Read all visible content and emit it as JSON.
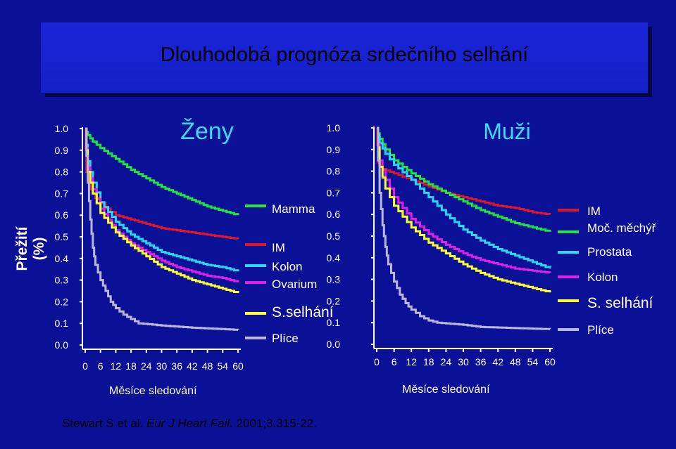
{
  "title": "Dlouhodobá prognóza srdečního selhání",
  "ylabel": "Přežití (%)",
  "citation": {
    "authors": "Stewart S et al.",
    "journal": "Eur J Heart Fail.",
    "ref": "2001;3:315-22."
  },
  "colors": {
    "background": "#0b1196",
    "title_box": "#1520c8",
    "red": "#e0162b",
    "green": "#1ee63a",
    "cyan": "#2ad8ff",
    "magenta": "#e020e6",
    "yellow": "#ffff2e",
    "gray": "#b8b8d8"
  },
  "chart_data": [
    {
      "type": "line",
      "title": "Ženy",
      "xlabel": "Měsíce sledování",
      "ylabel": "Přežití (%)",
      "xlim": [
        0,
        60
      ],
      "ylim": [
        0,
        1
      ],
      "x_ticks": [
        "0",
        "6",
        "12",
        "18",
        "24",
        "30",
        "36",
        "42",
        "48",
        "54",
        "60"
      ],
      "y_ticks": [
        "0.0",
        "0.1",
        "0.2",
        "0.3",
        "0.4",
        "0.5",
        "0.6",
        "0.7",
        "0.8",
        "0.9",
        "1.0"
      ],
      "legend": [
        "Mamma",
        "IM",
        "Kolon",
        "Ovarium",
        "S.selhání",
        "Plíce"
      ],
      "series": [
        {
          "name": "Mamma",
          "color": "#1ee63a",
          "points": [
            [
              0,
              1
            ],
            [
              1,
              0.97
            ],
            [
              3,
              0.94
            ],
            [
              6,
              0.91
            ],
            [
              12,
              0.86
            ],
            [
              18,
              0.81
            ],
            [
              24,
              0.77
            ],
            [
              30,
              0.73
            ],
            [
              36,
              0.7
            ],
            [
              42,
              0.67
            ],
            [
              48,
              0.64
            ],
            [
              54,
              0.62
            ],
            [
              60,
              0.6
            ]
          ]
        },
        {
          "name": "IM",
          "color": "#e0162b",
          "points": [
            [
              0,
              1
            ],
            [
              0.5,
              0.8
            ],
            [
              2,
              0.72
            ],
            [
              4,
              0.68
            ],
            [
              8,
              0.63
            ],
            [
              12,
              0.6
            ],
            [
              18,
              0.58
            ],
            [
              24,
              0.56
            ],
            [
              30,
              0.54
            ],
            [
              36,
              0.53
            ],
            [
              42,
              0.52
            ],
            [
              48,
              0.51
            ],
            [
              54,
              0.5
            ],
            [
              60,
              0.49
            ]
          ]
        },
        {
          "name": "Kolon",
          "color": "#2ad8ff",
          "points": [
            [
              0,
              1
            ],
            [
              1,
              0.85
            ],
            [
              3,
              0.75
            ],
            [
              6,
              0.66
            ],
            [
              12,
              0.57
            ],
            [
              18,
              0.51
            ],
            [
              24,
              0.47
            ],
            [
              30,
              0.43
            ],
            [
              36,
              0.41
            ],
            [
              42,
              0.39
            ],
            [
              48,
              0.37
            ],
            [
              54,
              0.36
            ],
            [
              60,
              0.34
            ]
          ]
        },
        {
          "name": "Ovarium",
          "color": "#e020e6",
          "points": [
            [
              0,
              1
            ],
            [
              1,
              0.82
            ],
            [
              3,
              0.72
            ],
            [
              6,
              0.63
            ],
            [
              12,
              0.53
            ],
            [
              18,
              0.47
            ],
            [
              24,
              0.43
            ],
            [
              30,
              0.39
            ],
            [
              36,
              0.36
            ],
            [
              42,
              0.34
            ],
            [
              48,
              0.32
            ],
            [
              54,
              0.31
            ],
            [
              60,
              0.29
            ]
          ]
        },
        {
          "name": "S.selhání",
          "color": "#ffff2e",
          "points": [
            [
              0,
              1
            ],
            [
              1,
              0.8
            ],
            [
              3,
              0.7
            ],
            [
              6,
              0.61
            ],
            [
              12,
              0.52
            ],
            [
              18,
              0.46
            ],
            [
              24,
              0.41
            ],
            [
              30,
              0.36
            ],
            [
              36,
              0.33
            ],
            [
              42,
              0.3
            ],
            [
              48,
              0.28
            ],
            [
              54,
              0.26
            ],
            [
              60,
              0.24
            ]
          ]
        },
        {
          "name": "Plíce",
          "color": "#b8b8d8",
          "points": [
            [
              0,
              1
            ],
            [
              1,
              0.75
            ],
            [
              2,
              0.58
            ],
            [
              3,
              0.45
            ],
            [
              4,
              0.37
            ],
            [
              6,
              0.3
            ],
            [
              8,
              0.25
            ],
            [
              10,
              0.2
            ],
            [
              12,
              0.17
            ],
            [
              15,
              0.14
            ],
            [
              18,
              0.12
            ],
            [
              21,
              0.1
            ],
            [
              30,
              0.09
            ],
            [
              42,
              0.08
            ],
            [
              60,
              0.07
            ]
          ]
        }
      ]
    },
    {
      "type": "line",
      "title": "Muži",
      "xlabel": "Měsíce sledování",
      "ylabel": "Přežití (%)",
      "xlim": [
        0,
        60
      ],
      "ylim": [
        0,
        1
      ],
      "x_ticks": [
        "0",
        "6",
        "12",
        "18",
        "24",
        "30",
        "36",
        "42",
        "48",
        "54",
        "60"
      ],
      "y_ticks": [
        "0.0",
        "0.1",
        "0.2",
        "0.3",
        "0.4",
        "0.5",
        "0.6",
        "0.7",
        "0.8",
        "0.9",
        "1.0"
      ],
      "legend": [
        "IM",
        "Moč. měchýř",
        "Prostata",
        "Kolon",
        "S. selhání",
        "Plíce"
      ],
      "series": [
        {
          "name": "IM",
          "color": "#e0162b",
          "points": [
            [
              0,
              1
            ],
            [
              0.5,
              0.84
            ],
            [
              2,
              0.81
            ],
            [
              6,
              0.79
            ],
            [
              12,
              0.76
            ],
            [
              18,
              0.73
            ],
            [
              24,
              0.7
            ],
            [
              30,
              0.68
            ],
            [
              36,
              0.66
            ],
            [
              42,
              0.64
            ],
            [
              48,
              0.63
            ],
            [
              54,
              0.61
            ],
            [
              60,
              0.6
            ]
          ]
        },
        {
          "name": "Moč. měchýř",
          "color": "#1ee63a",
          "points": [
            [
              0,
              1
            ],
            [
              1,
              0.95
            ],
            [
              3,
              0.9
            ],
            [
              6,
              0.85
            ],
            [
              12,
              0.79
            ],
            [
              18,
              0.74
            ],
            [
              24,
              0.7
            ],
            [
              30,
              0.66
            ],
            [
              36,
              0.62
            ],
            [
              42,
              0.59
            ],
            [
              48,
              0.56
            ],
            [
              54,
              0.54
            ],
            [
              60,
              0.52
            ]
          ]
        },
        {
          "name": "Prostata",
          "color": "#2ad8ff",
          "points": [
            [
              0,
              1
            ],
            [
              1,
              0.93
            ],
            [
              3,
              0.88
            ],
            [
              6,
              0.83
            ],
            [
              12,
              0.76
            ],
            [
              18,
              0.68
            ],
            [
              24,
              0.6
            ],
            [
              30,
              0.53
            ],
            [
              36,
              0.48
            ],
            [
              42,
              0.44
            ],
            [
              48,
              0.41
            ],
            [
              54,
              0.38
            ],
            [
              60,
              0.35
            ]
          ]
        },
        {
          "name": "Kolon",
          "color": "#e020e6",
          "points": [
            [
              0,
              1
            ],
            [
              1,
              0.85
            ],
            [
              3,
              0.76
            ],
            [
              6,
              0.68
            ],
            [
              12,
              0.58
            ],
            [
              18,
              0.51
            ],
            [
              24,
              0.46
            ],
            [
              30,
              0.42
            ],
            [
              36,
              0.39
            ],
            [
              42,
              0.37
            ],
            [
              48,
              0.35
            ],
            [
              54,
              0.34
            ],
            [
              60,
              0.33
            ]
          ]
        },
        {
          "name": "S. selhání",
          "color": "#ffff2e",
          "points": [
            [
              0,
              1
            ],
            [
              1,
              0.82
            ],
            [
              3,
              0.72
            ],
            [
              6,
              0.64
            ],
            [
              12,
              0.54
            ],
            [
              18,
              0.47
            ],
            [
              24,
              0.42
            ],
            [
              30,
              0.37
            ],
            [
              36,
              0.33
            ],
            [
              42,
              0.3
            ],
            [
              48,
              0.28
            ],
            [
              54,
              0.26
            ],
            [
              60,
              0.24
            ]
          ]
        },
        {
          "name": "Plíce",
          "color": "#b8b8d8",
          "points": [
            [
              0,
              1
            ],
            [
              1,
              0.7
            ],
            [
              2,
              0.55
            ],
            [
              3,
              0.45
            ],
            [
              4,
              0.37
            ],
            [
              6,
              0.29
            ],
            [
              8,
              0.23
            ],
            [
              10,
              0.19
            ],
            [
              12,
              0.16
            ],
            [
              15,
              0.13
            ],
            [
              18,
              0.11
            ],
            [
              21,
              0.1
            ],
            [
              30,
              0.09
            ],
            [
              36,
              0.08
            ],
            [
              60,
              0.07
            ]
          ]
        }
      ]
    }
  ]
}
